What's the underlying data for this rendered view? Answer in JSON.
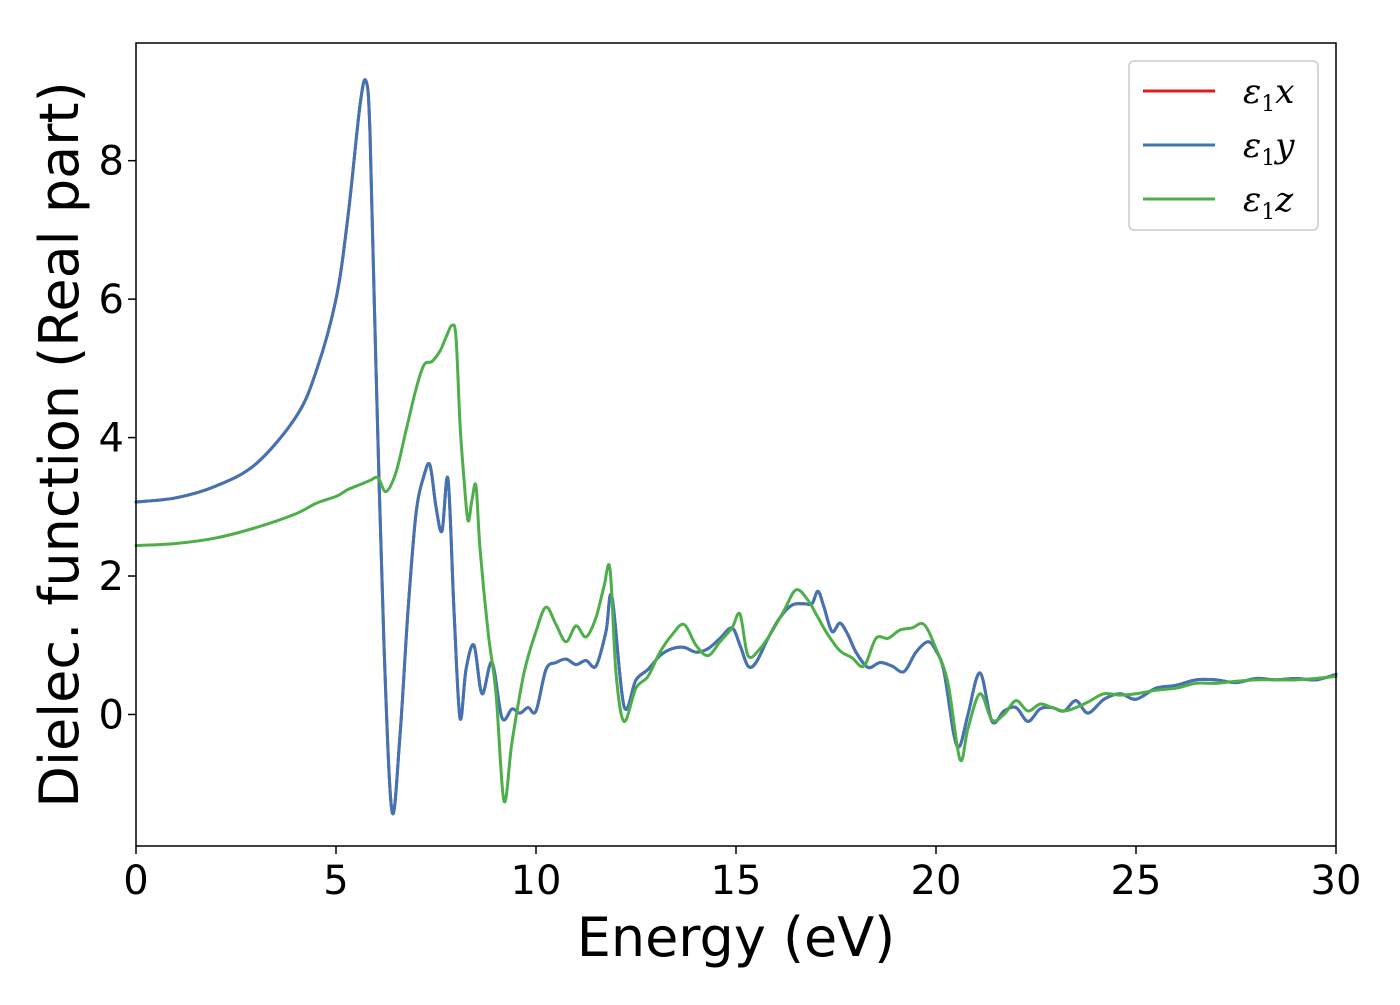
{
  "chart_data": {
    "type": "line",
    "xlabel": "Energy (eV)",
    "ylabel": "Dielec. function (Real part)",
    "xlim": [
      0,
      30
    ],
    "ylim": [
      -1.9,
      9.7
    ],
    "xticks": [
      0,
      5,
      10,
      15,
      20,
      25,
      30
    ],
    "yticks": [
      0,
      2,
      4,
      6,
      8
    ],
    "grid": false,
    "legend": "top-right",
    "series": [
      {
        "name": "ε1x",
        "color": "#e41a1c",
        "x": [
          0,
          1,
          2,
          3,
          4,
          4.5,
          5,
          5.3,
          5.6,
          5.75,
          5.85,
          6.0,
          6.2,
          6.4,
          6.6,
          6.8,
          7.0,
          7.2,
          7.35,
          7.5,
          7.65,
          7.8,
          7.95,
          8.1,
          8.25,
          8.45,
          8.65,
          8.9,
          9.15,
          9.4,
          9.6,
          9.8,
          10.0,
          10.25,
          10.5,
          10.75,
          11.0,
          11.25,
          11.5,
          11.75,
          11.9,
          12.2,
          12.5,
          12.8,
          13.1,
          13.4,
          13.7,
          14.0,
          14.3,
          14.6,
          14.9,
          15.1,
          15.3,
          15.5,
          15.8,
          16.1,
          16.4,
          16.7,
          16.9,
          17.05,
          17.2,
          17.4,
          17.6,
          17.8,
          18.0,
          18.3,
          18.6,
          18.9,
          19.2,
          19.5,
          19.8,
          20.0,
          20.2,
          20.45,
          20.6,
          20.8,
          21.1,
          21.4,
          21.7,
          22.0,
          22.3,
          22.6,
          22.9,
          23.2,
          23.5,
          23.8,
          24.2,
          24.6,
          25.0,
          25.5,
          26.0,
          26.5,
          27.0,
          27.5,
          28.0,
          28.5,
          29.0,
          29.5,
          30.0
        ],
        "y": [
          3.07,
          3.13,
          3.3,
          3.62,
          4.3,
          4.95,
          6.0,
          7.2,
          8.8,
          9.15,
          8.4,
          5.0,
          1.0,
          -1.4,
          -0.3,
          1.5,
          2.9,
          3.45,
          3.6,
          3.0,
          2.65,
          3.4,
          1.5,
          -0.05,
          0.65,
          1.0,
          0.3,
          0.75,
          -0.05,
          0.08,
          0.02,
          0.1,
          0.05,
          0.65,
          0.75,
          0.8,
          0.72,
          0.78,
          0.7,
          1.2,
          1.7,
          0.12,
          0.5,
          0.65,
          0.85,
          0.95,
          0.97,
          0.9,
          0.95,
          1.1,
          1.25,
          1.0,
          0.7,
          0.75,
          1.1,
          1.4,
          1.58,
          1.6,
          1.6,
          1.78,
          1.55,
          1.2,
          1.32,
          1.15,
          0.9,
          0.68,
          0.75,
          0.7,
          0.62,
          0.9,
          1.05,
          0.92,
          0.62,
          -0.3,
          -0.45,
          0.0,
          0.6,
          -0.1,
          0.05,
          0.1,
          -0.1,
          0.08,
          0.1,
          0.05,
          0.2,
          0.02,
          0.22,
          0.3,
          0.22,
          0.38,
          0.42,
          0.5,
          0.5,
          0.46,
          0.52,
          0.5,
          0.52,
          0.5,
          0.58
        ]
      },
      {
        "name": "ε1y",
        "color": "#3f75b4",
        "x": [
          0,
          1,
          2,
          3,
          4,
          4.5,
          5,
          5.3,
          5.6,
          5.75,
          5.85,
          6.0,
          6.2,
          6.4,
          6.6,
          6.8,
          7.0,
          7.2,
          7.35,
          7.5,
          7.65,
          7.8,
          7.95,
          8.1,
          8.25,
          8.45,
          8.65,
          8.9,
          9.15,
          9.4,
          9.6,
          9.8,
          10.0,
          10.25,
          10.5,
          10.75,
          11.0,
          11.25,
          11.5,
          11.75,
          11.9,
          12.2,
          12.5,
          12.8,
          13.1,
          13.4,
          13.7,
          14.0,
          14.3,
          14.6,
          14.9,
          15.1,
          15.3,
          15.5,
          15.8,
          16.1,
          16.4,
          16.7,
          16.9,
          17.05,
          17.2,
          17.4,
          17.6,
          17.8,
          18.0,
          18.3,
          18.6,
          18.9,
          19.2,
          19.5,
          19.8,
          20.0,
          20.2,
          20.45,
          20.6,
          20.8,
          21.1,
          21.4,
          21.7,
          22.0,
          22.3,
          22.6,
          22.9,
          23.2,
          23.5,
          23.8,
          24.2,
          24.6,
          25.0,
          25.5,
          26.0,
          26.5,
          27.0,
          27.5,
          28.0,
          28.5,
          29.0,
          29.5,
          30.0
        ],
        "y": [
          3.07,
          3.13,
          3.3,
          3.62,
          4.3,
          4.95,
          6.0,
          7.2,
          8.8,
          9.15,
          8.4,
          5.0,
          1.0,
          -1.4,
          -0.3,
          1.5,
          2.9,
          3.45,
          3.6,
          3.0,
          2.65,
          3.4,
          1.5,
          -0.05,
          0.65,
          1.0,
          0.3,
          0.75,
          -0.05,
          0.08,
          0.02,
          0.1,
          0.05,
          0.65,
          0.75,
          0.8,
          0.72,
          0.78,
          0.7,
          1.2,
          1.7,
          0.12,
          0.5,
          0.65,
          0.85,
          0.95,
          0.97,
          0.9,
          0.95,
          1.1,
          1.25,
          1.0,
          0.7,
          0.75,
          1.1,
          1.4,
          1.58,
          1.6,
          1.6,
          1.78,
          1.55,
          1.2,
          1.32,
          1.15,
          0.9,
          0.68,
          0.75,
          0.7,
          0.62,
          0.9,
          1.05,
          0.92,
          0.62,
          -0.3,
          -0.45,
          0.0,
          0.6,
          -0.1,
          0.05,
          0.1,
          -0.1,
          0.08,
          0.1,
          0.05,
          0.2,
          0.02,
          0.22,
          0.3,
          0.22,
          0.38,
          0.42,
          0.5,
          0.5,
          0.46,
          0.52,
          0.5,
          0.52,
          0.5,
          0.58
        ]
      },
      {
        "name": "ε1z",
        "color": "#4daf4a",
        "x": [
          0,
          1,
          2,
          3,
          4,
          4.5,
          5,
          5.3,
          5.6,
          5.85,
          6.05,
          6.25,
          6.5,
          6.75,
          7.0,
          7.2,
          7.4,
          7.6,
          7.75,
          7.9,
          8.0,
          8.1,
          8.2,
          8.3,
          8.4,
          8.5,
          8.6,
          8.8,
          9.0,
          9.2,
          9.4,
          9.7,
          10.0,
          10.25,
          10.5,
          10.75,
          11.0,
          11.25,
          11.5,
          11.7,
          11.85,
          12.0,
          12.2,
          12.5,
          12.8,
          13.1,
          13.4,
          13.7,
          14.0,
          14.3,
          14.6,
          14.9,
          15.1,
          15.3,
          15.6,
          15.9,
          16.2,
          16.5,
          16.8,
          17.05,
          17.3,
          17.6,
          17.9,
          18.2,
          18.5,
          18.8,
          19.1,
          19.4,
          19.7,
          20.0,
          20.3,
          20.6,
          20.8,
          21.1,
          21.4,
          21.7,
          22.0,
          22.3,
          22.6,
          22.9,
          23.2,
          23.5,
          23.8,
          24.2,
          24.6,
          25.0,
          25.5,
          26.0,
          26.5,
          27.0,
          27.5,
          28.0,
          28.5,
          29.0,
          29.5,
          30.0
        ],
        "y": [
          2.44,
          2.47,
          2.55,
          2.7,
          2.9,
          3.05,
          3.15,
          3.25,
          3.32,
          3.38,
          3.42,
          3.22,
          3.5,
          4.1,
          4.7,
          5.05,
          5.1,
          5.25,
          5.45,
          5.62,
          5.45,
          4.2,
          3.4,
          2.8,
          3.1,
          3.3,
          2.4,
          1.2,
          0.3,
          -1.25,
          -0.4,
          0.6,
          1.2,
          1.55,
          1.3,
          1.05,
          1.28,
          1.12,
          1.4,
          1.85,
          2.1,
          0.6,
          -0.1,
          0.38,
          0.55,
          0.9,
          1.15,
          1.3,
          1.0,
          0.85,
          1.05,
          1.25,
          1.45,
          0.85,
          0.95,
          1.2,
          1.5,
          1.8,
          1.65,
          1.4,
          1.15,
          0.92,
          0.82,
          0.7,
          1.1,
          1.1,
          1.22,
          1.25,
          1.3,
          0.95,
          0.45,
          -0.65,
          -0.2,
          0.3,
          -0.08,
          0.0,
          0.2,
          0.05,
          0.15,
          0.1,
          0.05,
          0.1,
          0.18,
          0.3,
          0.28,
          0.3,
          0.35,
          0.38,
          0.45,
          0.45,
          0.48,
          0.5,
          0.5,
          0.5,
          0.52,
          0.55
        ]
      }
    ]
  }
}
